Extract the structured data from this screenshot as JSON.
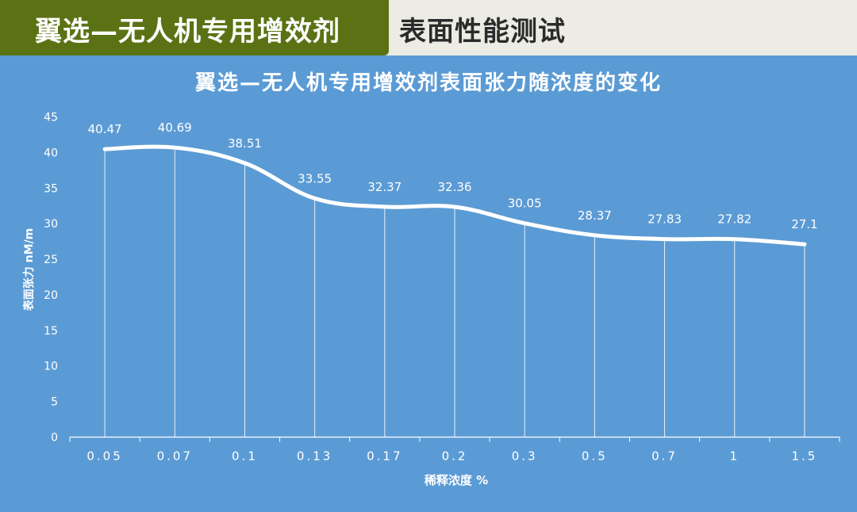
{
  "header": {
    "brand": "翼选—无人机专用增效剂",
    "section": "表面性能测试"
  },
  "colors": {
    "header_brand_bg": "#5b7214",
    "header_bg": "#ecece4",
    "chart_bg": "#5b9bd5",
    "line": "#ffffff"
  },
  "chart_data": {
    "type": "line",
    "title": "翼选—无人机专用增效剂表面张力随浓度的变化",
    "xlabel": "稀释浓度 %",
    "ylabel": "表面张力 nM/m",
    "categories": [
      "0.05",
      "0.07",
      "0.1",
      "0.13",
      "0.17",
      "0.2",
      "0.3",
      "0.5",
      "0.7",
      "1",
      "1.5"
    ],
    "series": [
      {
        "values": [
          40.47,
          40.69,
          38.51,
          33.55,
          32.37,
          32.36,
          30.05,
          28.37,
          27.83,
          27.82,
          27.1
        ]
      }
    ],
    "data_labels": [
      "40.47",
      "40.69",
      "38.51",
      "33.55",
      "32.37",
      "32.36",
      "30.05",
      "28.37",
      "27.83",
      "27.82",
      "27.1"
    ],
    "ylim": [
      0,
      45
    ],
    "yticks": [
      "0",
      "5",
      "10",
      "15",
      "20",
      "25",
      "30",
      "35",
      "40",
      "45"
    ],
    "drop_lines": true,
    "legend": "none",
    "grid": false
  }
}
